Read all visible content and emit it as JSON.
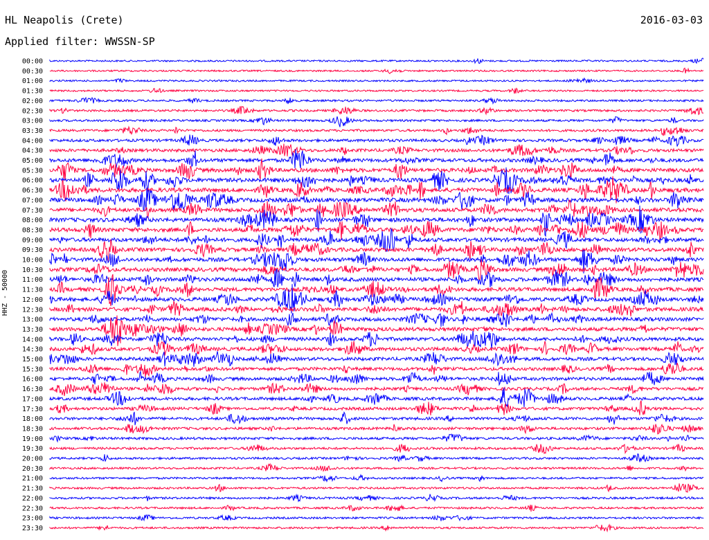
{
  "header": {
    "station": "HL Neapolis (Crete)",
    "date": "2016-03-03",
    "filter": "Applied filter: WWSSN-SP"
  },
  "axis": {
    "ylabel": "HHZ - 50000"
  },
  "colors": {
    "trace_a": "#0000ff",
    "trace_b": "#ff0040",
    "text": "#000000"
  },
  "rows": [
    "00:00",
    "00:30",
    "01:00",
    "01:30",
    "02:00",
    "02:30",
    "03:00",
    "03:30",
    "04:00",
    "04:30",
    "05:00",
    "05:30",
    "06:00",
    "06:30",
    "07:00",
    "07:30",
    "08:00",
    "08:30",
    "09:00",
    "09:30",
    "10:00",
    "10:30",
    "11:00",
    "11:30",
    "12:00",
    "12:30",
    "13:00",
    "13:30",
    "14:00",
    "14:30",
    "15:00",
    "15:30",
    "16:00",
    "16:30",
    "17:00",
    "17:30",
    "18:00",
    "18:30",
    "19:00",
    "19:30",
    "20:00",
    "20:30",
    "21:00",
    "21:30",
    "22:00",
    "22:30",
    "23:00",
    "23:30"
  ],
  "activity": [
    0.1,
    0.1,
    0.1,
    0.12,
    0.2,
    0.25,
    0.25,
    0.3,
    0.45,
    0.55,
    0.7,
    0.8,
    0.85,
    0.9,
    0.9,
    0.85,
    0.85,
    0.85,
    0.8,
    0.8,
    0.8,
    0.8,
    0.8,
    0.8,
    0.8,
    0.8,
    0.75,
    0.75,
    0.7,
    0.7,
    0.65,
    0.6,
    0.6,
    0.55,
    0.55,
    0.5,
    0.45,
    0.4,
    0.35,
    0.3,
    0.25,
    0.2,
    0.2,
    0.2,
    0.25,
    0.2,
    0.2,
    0.2
  ]
}
